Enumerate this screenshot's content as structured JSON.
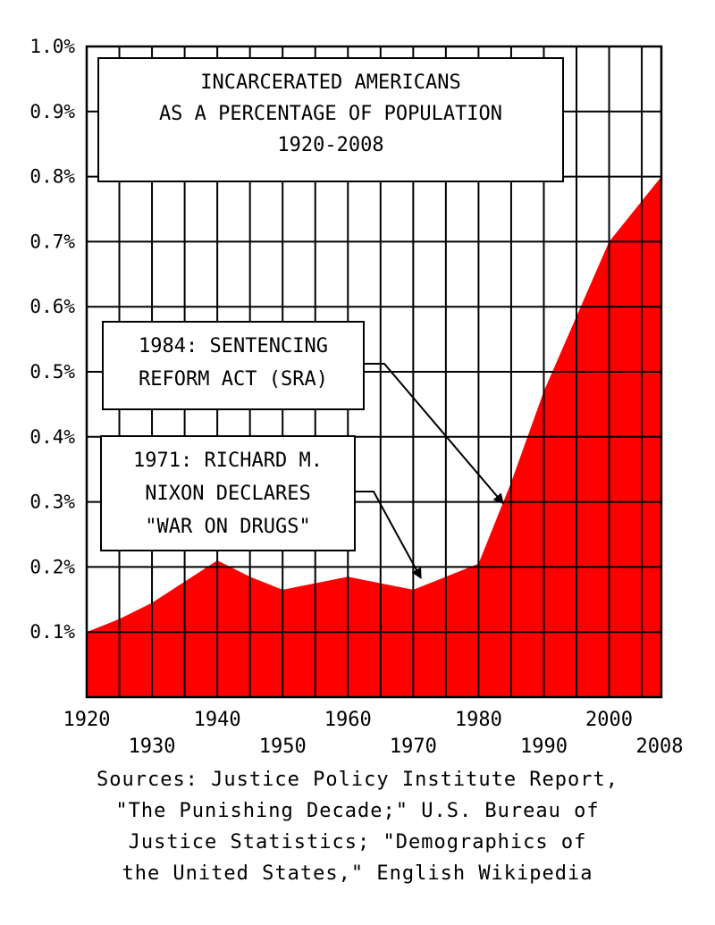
{
  "chart_data": {
    "type": "area",
    "title": [
      "INCARCERATED AMERICANS",
      "AS A PERCENTAGE OF POPULATION",
      "1920-2008"
    ],
    "x": [
      1920,
      1925,
      1930,
      1940,
      1945,
      1950,
      1960,
      1965,
      1970,
      1975,
      1980,
      1985,
      1990,
      2000,
      2008
    ],
    "y": [
      0.1,
      0.12,
      0.145,
      0.21,
      0.185,
      0.165,
      0.185,
      0.175,
      0.165,
      0.185,
      0.205,
      0.33,
      0.47,
      0.7,
      0.8
    ],
    "xlim": [
      1920,
      2008
    ],
    "ylim": [
      0,
      1.0
    ],
    "yticks": [
      0.1,
      0.2,
      0.3,
      0.4,
      0.5,
      0.6,
      0.7,
      0.8,
      0.9,
      1.0
    ],
    "ytick_labels": [
      "0.1%",
      "0.2%",
      "0.3%",
      "0.4%",
      "0.5%",
      "0.6%",
      "0.7%",
      "0.8%",
      "0.9%",
      "1.0%"
    ],
    "xticks_row1": [
      1920,
      1940,
      1960,
      1980,
      2000
    ],
    "xticks_row2": [
      1930,
      1950,
      1970,
      1990,
      2008
    ],
    "grid": true,
    "fill_color": "#ff0000",
    "annotations": [
      {
        "lines": [
          "1984: SENTENCING",
          "REFORM ACT (SRA)"
        ],
        "x": 1984,
        "y": 0.29
      },
      {
        "lines": [
          "1971: RICHARD M.",
          "NIXON DECLARES",
          "\"WAR ON DRUGS\""
        ],
        "x": 1971,
        "y": 0.17
      }
    ]
  },
  "sources": [
    "Sources: Justice Policy Institute Report,",
    "\"The Punishing Decade;\" U.S. Bureau of",
    "Justice Statistics; \"Demographics of",
    "the United States,\" English Wikipedia"
  ]
}
